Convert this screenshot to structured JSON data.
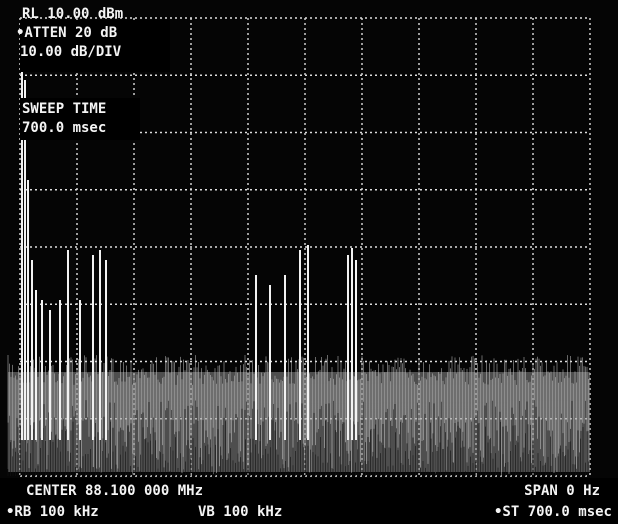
{
  "header": {
    "reference_level": "RL 10.00 dBm",
    "attenuation": "•ATTEN 20 dB",
    "scale": "10.00 dB/DIV"
  },
  "sweep_time": {
    "label": "SWEEP TIME",
    "value": "700.0 msec"
  },
  "footer": {
    "center": "CENTER 88.100 000 MHz",
    "span": "SPAN 0 Hz",
    "resolution_bandwidth": "•RB 100 kHz",
    "video_bandwidth": "VB 100 kHz",
    "sweep_time": "•ST 700.0 msec"
  }
}
